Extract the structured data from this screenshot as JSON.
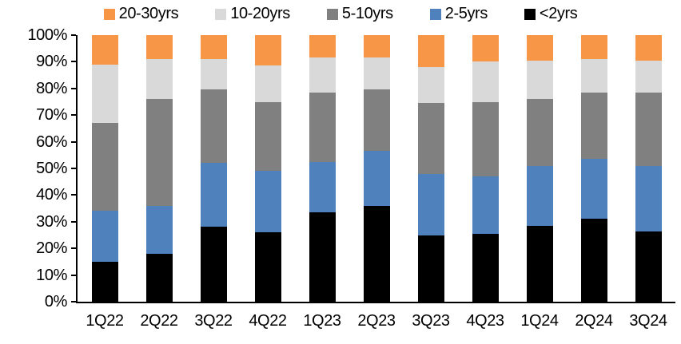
{
  "legend": {
    "items": [
      {
        "label": "20-30yrs",
        "color": "#F79646"
      },
      {
        "label": "10-20yrs",
        "color": "#D9D9D9"
      },
      {
        "label": "5-10yrs",
        "color": "#808080"
      },
      {
        "label": "2-5yrs",
        "color": "#4F81BD"
      },
      {
        "label": "<2yrs",
        "color": "#000000"
      }
    ]
  },
  "chart_data": {
    "type": "bar",
    "stacked": true,
    "percent_stacked": true,
    "title": "",
    "xlabel": "",
    "ylabel": "",
    "ylim": [
      0,
      100
    ],
    "grid": false,
    "legend_position": "top",
    "legend_order": [
      "20-30yrs",
      "10-20yrs",
      "5-10yrs",
      "2-5yrs",
      "<2yrs"
    ],
    "categories": [
      "1Q22",
      "2Q22",
      "3Q22",
      "4Q22",
      "1Q23",
      "2Q23",
      "3Q23",
      "4Q23",
      "1Q24",
      "2Q24",
      "3Q24"
    ],
    "series": [
      {
        "name": "<2yrs",
        "color": "#000000",
        "values": [
          15,
          18,
          28,
          26,
          33.5,
          36,
          25,
          25.5,
          28.5,
          31,
          26.5
        ]
      },
      {
        "name": "2-5yrs",
        "color": "#4F81BD",
        "values": [
          19,
          18,
          24,
          23,
          19,
          20.5,
          23,
          21.5,
          22.5,
          22.5,
          24.5
        ]
      },
      {
        "name": "5-10yrs",
        "color": "#808080",
        "values": [
          33,
          40,
          27.5,
          26,
          26,
          23,
          26.5,
          28,
          25,
          25,
          27.5
        ]
      },
      {
        "name": "10-20yrs",
        "color": "#D9D9D9",
        "values": [
          22,
          15,
          11.5,
          13.5,
          13,
          12,
          13.5,
          15,
          14.5,
          12.5,
          12
        ]
      },
      {
        "name": "20-30yrs",
        "color": "#F79646",
        "values": [
          11,
          9,
          9,
          11.5,
          8.5,
          8.5,
          12,
          10,
          9.5,
          9,
          9.5
        ]
      }
    ],
    "y_ticks": [
      "0%",
      "10%",
      "20%",
      "30%",
      "40%",
      "50%",
      "60%",
      "70%",
      "80%",
      "90%",
      "100%"
    ]
  }
}
